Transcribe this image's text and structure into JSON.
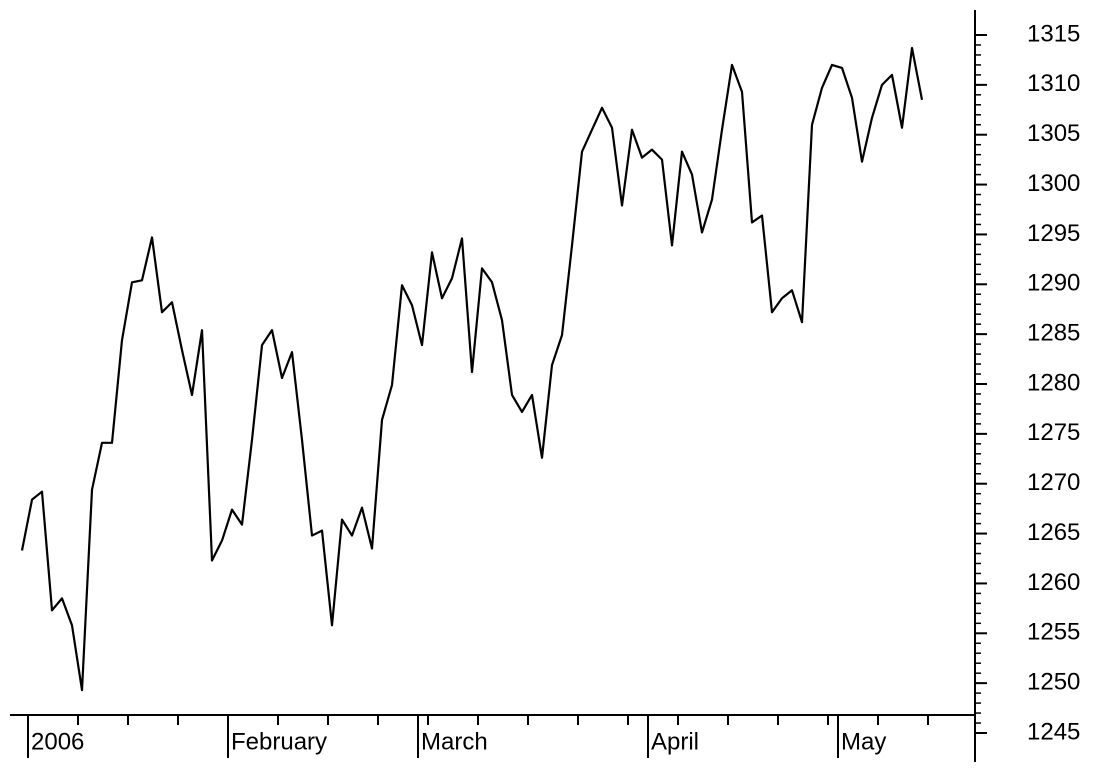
{
  "chart_data": {
    "type": "line",
    "categories": [
      "2006",
      null,
      null,
      null,
      null,
      null,
      null,
      null,
      null,
      null,
      null,
      null,
      null,
      null,
      null,
      null,
      null,
      null,
      null,
      null,
      "February",
      null,
      null,
      null,
      null,
      null,
      null,
      null,
      null,
      null,
      null,
      null,
      null,
      null,
      null,
      null,
      null,
      null,
      null,
      "March",
      null,
      null,
      null,
      null,
      null,
      null,
      null,
      null,
      null,
      null,
      null,
      null,
      null,
      null,
      null,
      null,
      null,
      null,
      null,
      null,
      null,
      null,
      "April",
      null,
      null,
      null,
      null,
      null,
      null,
      null,
      null,
      null,
      null,
      null,
      null,
      null,
      null,
      null,
      null,
      null,
      null,
      "May",
      null,
      null,
      null,
      null,
      null,
      null,
      null,
      null,
      null
    ],
    "values": [
      1263.3,
      1268.4,
      1269.2,
      1257.3,
      1258.5,
      1255.8,
      1249.3,
      1269.4,
      1274.1,
      1274.1,
      1284.4,
      1290.2,
      1290.4,
      1294.7,
      1287.2,
      1288.2,
      1283.4,
      1278.9,
      1285.4,
      1262.3,
      1264.3,
      1267.4,
      1265.9,
      1274.4,
      1283.9,
      1285.4,
      1280.6,
      1283.2,
      1274.4,
      1264.8,
      1265.3,
      1255.8,
      1266.4,
      1264.8,
      1267.6,
      1263.5,
      1276.4,
      1279.9,
      1289.9,
      1287.9,
      1283.9,
      1293.2,
      1288.6,
      1290.6,
      1294.6,
      1281.2,
      1291.6,
      1290.2,
      1286.4,
      1278.9,
      1277.2,
      1278.9,
      1272.6,
      1281.9,
      1284.9,
      1293.9,
      1303.3,
      1305.5,
      1307.7,
      1305.7,
      1297.9,
      1305.5,
      1302.7,
      1303.5,
      1302.5,
      1293.9,
      1303.3,
      1301.0,
      1295.2,
      1298.5,
      1305.5,
      1312.0,
      1309.3,
      1296.2,
      1296.9,
      1287.2,
      1288.6,
      1289.4,
      1286.2,
      1306.0,
      1309.7,
      1312.0,
      1311.7,
      1308.7,
      1302.3,
      1306.7,
      1310.0,
      1311.0,
      1305.7,
      1313.7,
      1308.5
    ],
    "color": "#000000",
    "ylim": [
      1245,
      1315
    ],
    "yticks": [
      1245,
      1250,
      1255,
      1260,
      1265,
      1270,
      1275,
      1280,
      1285,
      1290,
      1295,
      1300,
      1305,
      1310,
      1315
    ]
  }
}
